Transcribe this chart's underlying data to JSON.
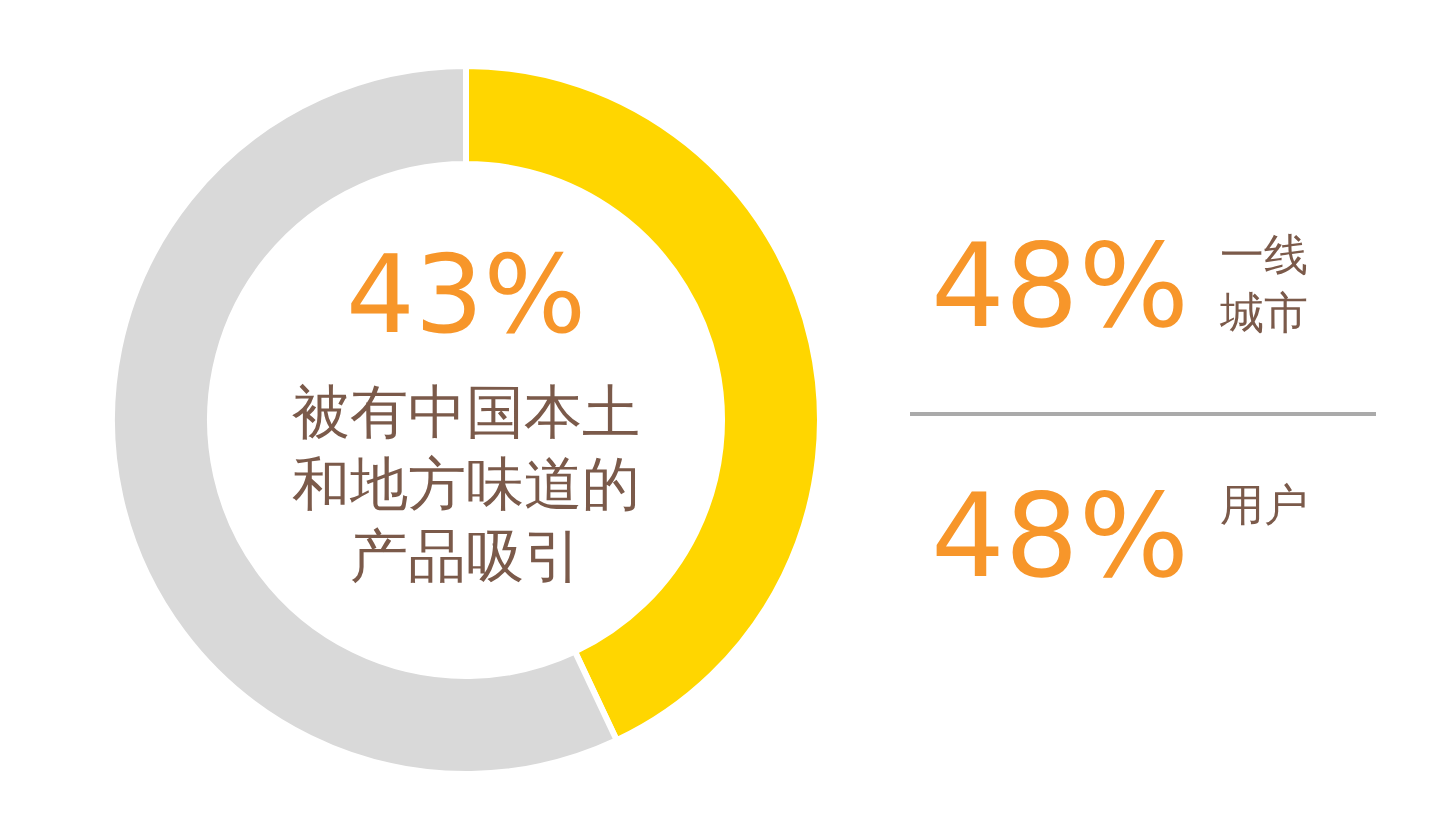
{
  "chart_data": [
    {
      "type": "donut",
      "categories": [
        "被有中国本土和地方味道的产品吸引",
        null
      ],
      "values": [
        43,
        57
      ],
      "colors": [
        "#ffd600",
        "#d9d9d9"
      ],
      "value_labels": [
        "43%",
        null
      ]
    },
    {
      "type": "other",
      "annotations": [
        "48%",
        "一线城市",
        "48%",
        "用户"
      ]
    }
  ]
}
